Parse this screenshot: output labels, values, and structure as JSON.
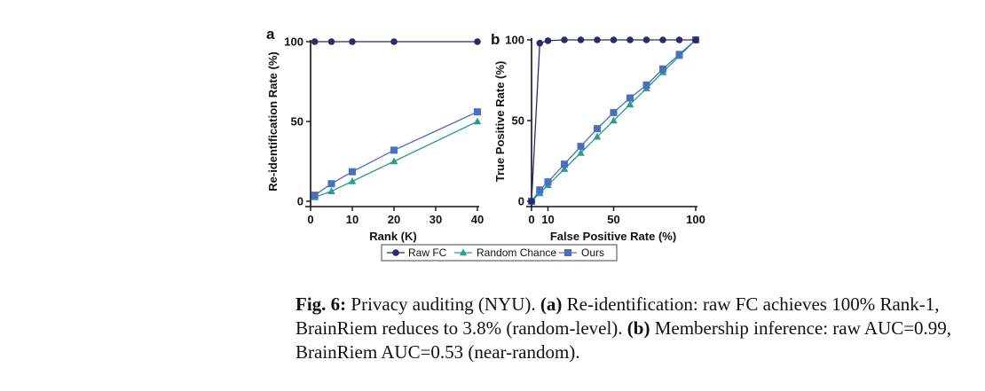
{
  "colors": {
    "raw_fc": "#2b2a6b",
    "random": "#2a9d8f",
    "ours": "#4a6fbf"
  },
  "legend": {
    "items": [
      "Raw FC",
      "Random Chance",
      "Ours"
    ]
  },
  "caption": {
    "fig_label": "Fig. 6:",
    "intro": " Privacy auditing (NYU). ",
    "a_label": "(a)",
    "a_text": " Re-identification: raw FC achieves 100% Rank-1, BrainRiem reduces to 3.8% (random-level). ",
    "b_label": "(b)",
    "b_text": " Membership inference: raw AUC=0.99, BrainRiem AUC=0.53 (near-random)."
  },
  "chart_data": [
    {
      "panel": "a",
      "type": "line",
      "xlabel": "Rank (K)",
      "ylabel": "Re-identification Rate (%)",
      "xlim": [
        0,
        40
      ],
      "ylim": [
        0,
        100
      ],
      "xticks": [
        0,
        10,
        20,
        30,
        40
      ],
      "yticks": [
        0,
        50,
        100
      ],
      "series": [
        {
          "name": "Raw FC",
          "marker": "circle",
          "x": [
            1,
            5,
            10,
            20,
            40
          ],
          "y": [
            100,
            100,
            100,
            100,
            100
          ]
        },
        {
          "name": "Random Chance",
          "marker": "triangle",
          "x": [
            1,
            5,
            10,
            20,
            40
          ],
          "y": [
            2.5,
            6.3,
            12.5,
            25,
            50
          ]
        },
        {
          "name": "Ours",
          "marker": "square",
          "x": [
            1,
            5,
            10,
            20,
            40
          ],
          "y": [
            3.8,
            11,
            18.5,
            32,
            56
          ]
        }
      ]
    },
    {
      "panel": "b",
      "type": "line",
      "xlabel": "False Positive Rate (%)",
      "ylabel": "True Positive Rate (%)",
      "xlim": [
        0,
        100
      ],
      "ylim": [
        0,
        100
      ],
      "xticks": [
        0,
        10,
        50,
        100
      ],
      "yticks": [
        0,
        50,
        100
      ],
      "series": [
        {
          "name": "Raw FC",
          "marker": "circle",
          "x": [
            0,
            5,
            10,
            20,
            30,
            40,
            50,
            60,
            70,
            80,
            90,
            100
          ],
          "y": [
            0,
            98,
            99.5,
            100,
            100,
            100,
            100,
            100,
            100,
            100,
            100,
            100
          ]
        },
        {
          "name": "Random Chance",
          "marker": "triangle",
          "x": [
            0,
            5,
            10,
            20,
            30,
            40,
            50,
            60,
            70,
            80,
            90,
            100
          ],
          "y": [
            0,
            5,
            10,
            20,
            30,
            40,
            50,
            60,
            70,
            80,
            90,
            100
          ]
        },
        {
          "name": "Ours",
          "marker": "square",
          "x": [
            0,
            5,
            10,
            20,
            30,
            40,
            50,
            60,
            70,
            80,
            90,
            100
          ],
          "y": [
            0,
            7,
            12,
            23,
            34,
            45,
            55,
            64,
            72,
            82,
            91,
            100
          ]
        }
      ]
    }
  ]
}
